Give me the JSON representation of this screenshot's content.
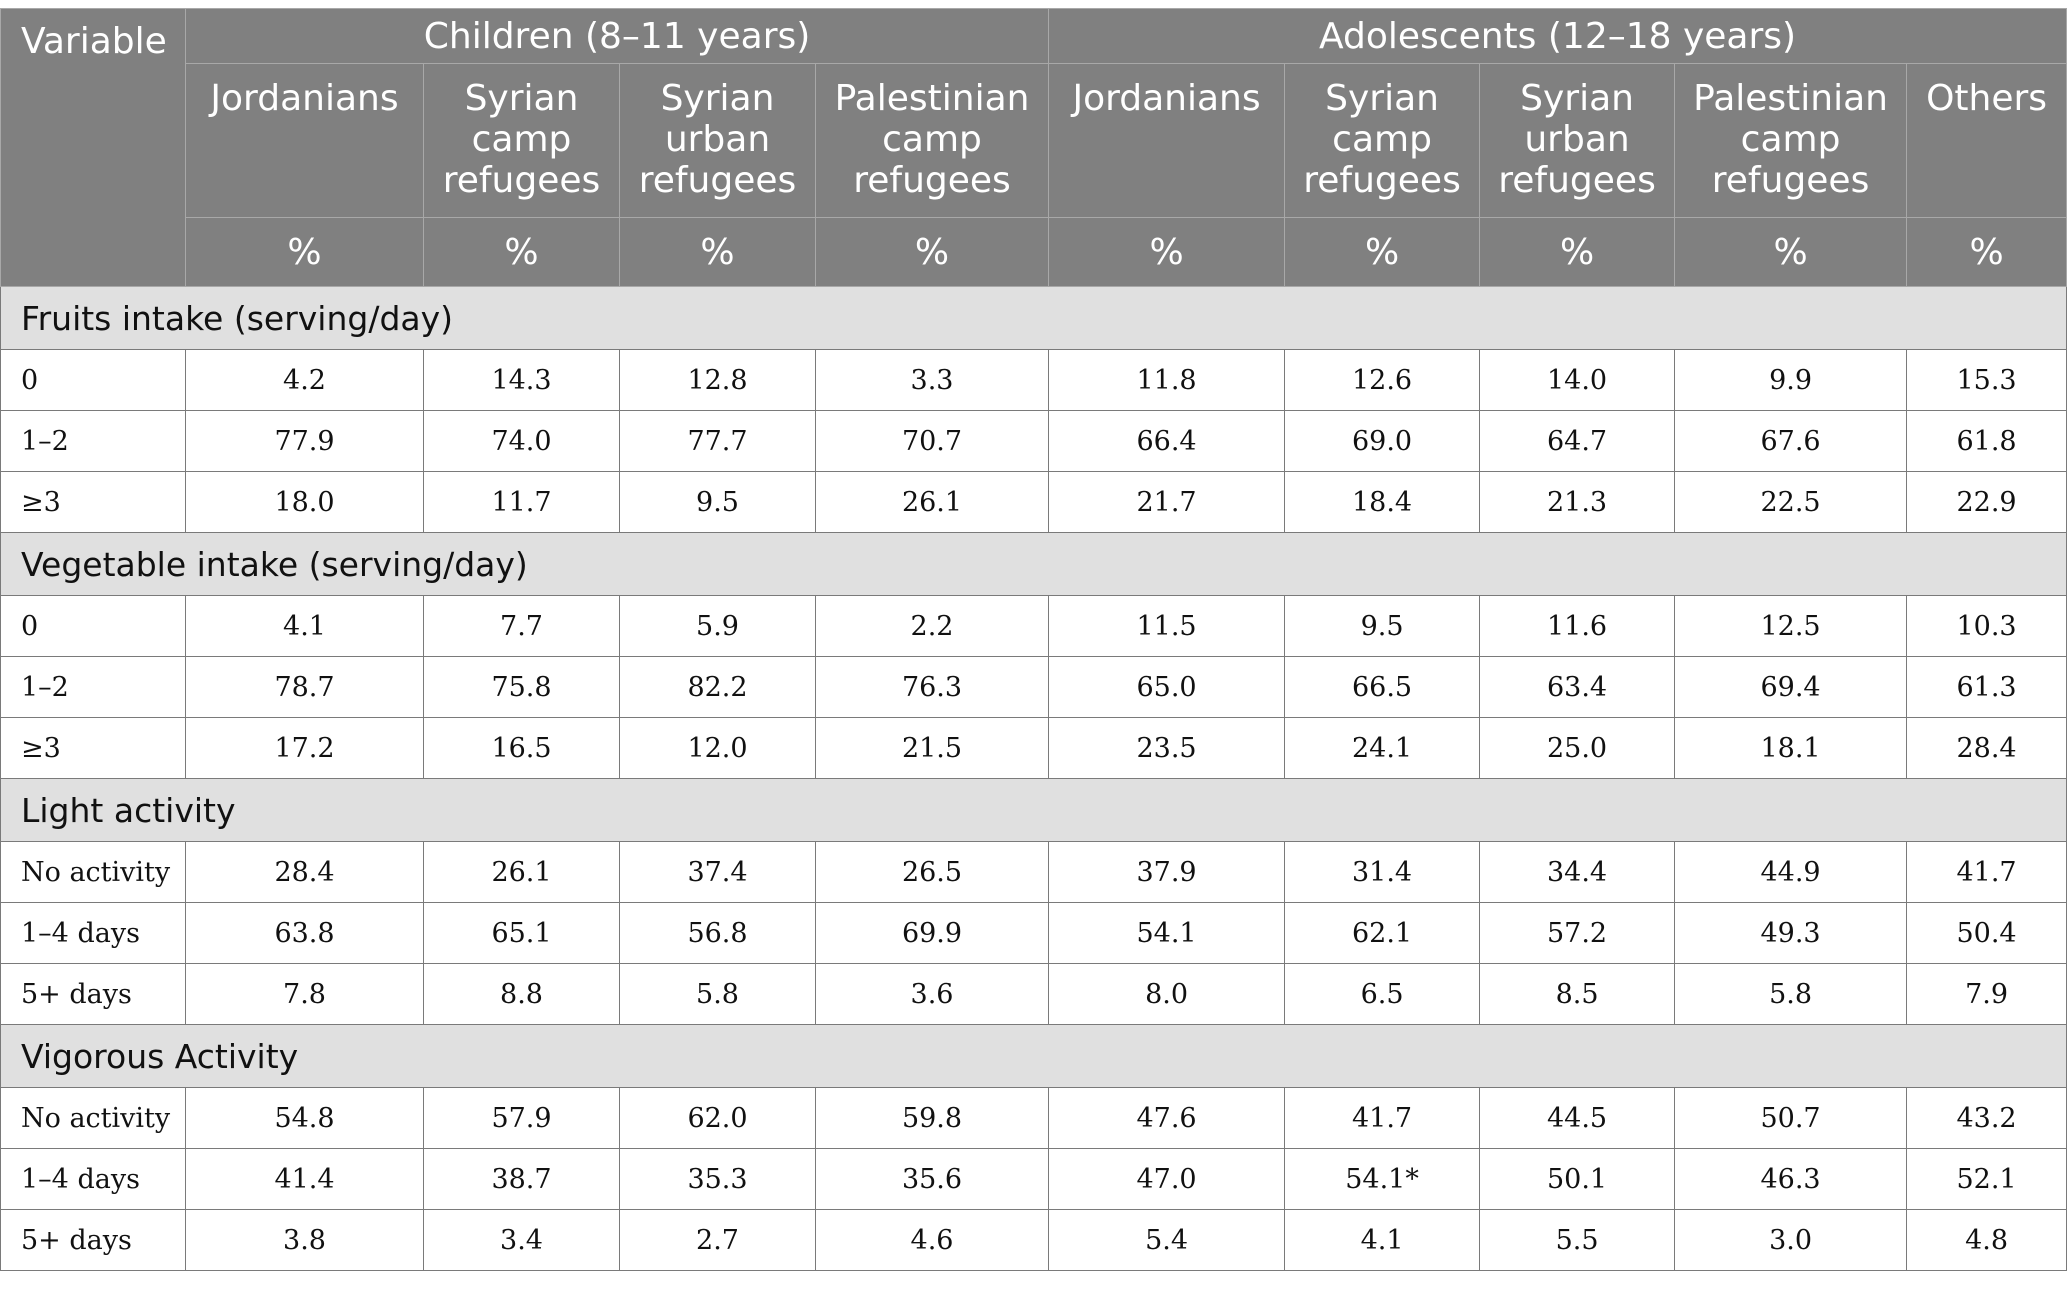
{
  "header": {
    "variable": "Variable",
    "group_children": "Children (8–11 years)",
    "group_adolescents": "Adolescents (12–18 years)",
    "columns": [
      "Jordanians",
      "Syrian camp refugees",
      "Syrian urban refugees",
      "Palestinian camp refugees",
      "Jordanians",
      "Syrian camp refugees",
      "Syrian urban refugees",
      "Palestinian camp refugees",
      "Others"
    ],
    "unit": "%"
  },
  "sections": [
    {
      "title": "Fruits intake (serving/day)",
      "rows": [
        {
          "label": "0",
          "values": [
            "4.2",
            "14.3",
            "12.8",
            "3.3",
            "11.8",
            "12.6",
            "14.0",
            "9.9",
            "15.3"
          ]
        },
        {
          "label": "1–2",
          "values": [
            "77.9",
            "74.0",
            "77.7",
            "70.7",
            "66.4",
            "69.0",
            "64.7",
            "67.6",
            "61.8"
          ]
        },
        {
          "label": "≥3",
          "values": [
            "18.0",
            "11.7",
            "9.5",
            "26.1",
            "21.7",
            "18.4",
            "21.3",
            "22.5",
            "22.9"
          ]
        }
      ]
    },
    {
      "title": "Vegetable intake (serving/day)",
      "rows": [
        {
          "label": "0",
          "values": [
            "4.1",
            "7.7",
            "5.9",
            "2.2",
            "11.5",
            "9.5",
            "11.6",
            "12.5",
            "10.3"
          ]
        },
        {
          "label": "1–2",
          "values": [
            "78.7",
            "75.8",
            "82.2",
            "76.3",
            "65.0",
            "66.5",
            "63.4",
            "69.4",
            "61.3"
          ]
        },
        {
          "label": "≥3",
          "values": [
            "17.2",
            "16.5",
            "12.0",
            "21.5",
            "23.5",
            "24.1",
            "25.0",
            "18.1",
            "28.4"
          ]
        }
      ]
    },
    {
      "title": "Light activity",
      "rows": [
        {
          "label": "No activity",
          "values": [
            "28.4",
            "26.1",
            "37.4",
            "26.5",
            "37.9",
            "31.4",
            "34.4",
            "44.9",
            "41.7"
          ]
        },
        {
          "label": "1–4 days",
          "values": [
            "63.8",
            "65.1",
            "56.8",
            "69.9",
            "54.1",
            "62.1",
            "57.2",
            "49.3",
            "50.4"
          ]
        },
        {
          "label": "5+ days",
          "values": [
            "7.8",
            "8.8",
            "5.8",
            "3.6",
            "8.0",
            "6.5",
            "8.5",
            "5.8",
            "7.9"
          ]
        }
      ]
    },
    {
      "title": "Vigorous Activity",
      "rows": [
        {
          "label": "No activity",
          "values": [
            "54.8",
            "57.9",
            "62.0",
            "59.8",
            "47.6",
            "41.7",
            "44.5",
            "50.7",
            "43.2"
          ]
        },
        {
          "label": "1–4 days",
          "values": [
            "41.4",
            "38.7",
            "35.3",
            "35.6",
            "47.0",
            "54.1*",
            "50.1",
            "46.3",
            "52.1"
          ]
        },
        {
          "label": "5+ days",
          "values": [
            "3.8",
            "3.4",
            "2.7",
            "4.6",
            "5.4",
            "4.1",
            "5.5",
            "3.0",
            "4.8"
          ]
        }
      ]
    }
  ]
}
